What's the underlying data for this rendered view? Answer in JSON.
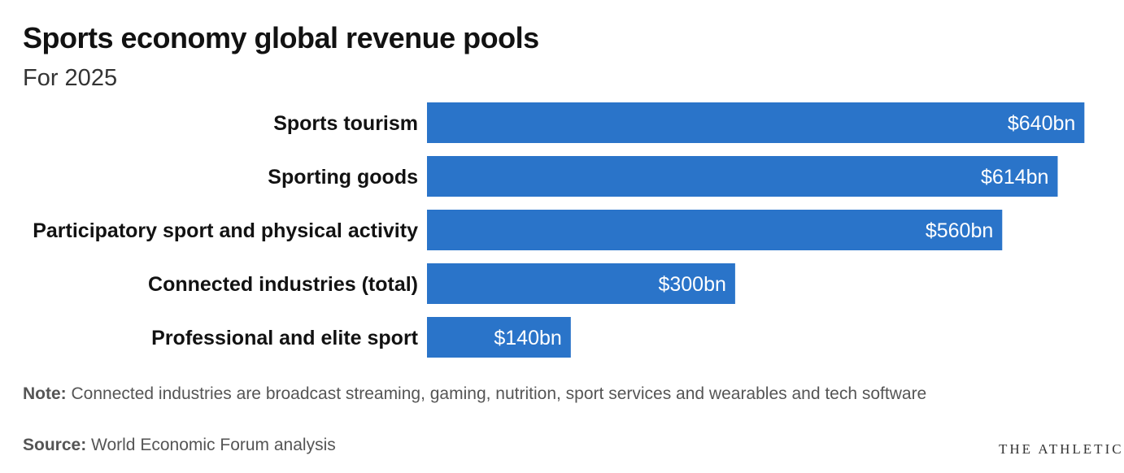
{
  "header": {
    "title": "Sports economy global revenue pools",
    "subtitle": "For 2025"
  },
  "chart_data": {
    "type": "bar",
    "orientation": "horizontal",
    "categories": [
      "Sports tourism",
      "Sporting goods",
      "Participatory sport and physical activity",
      "Connected industries (total)",
      "Professional and elite sport"
    ],
    "values": [
      640,
      614,
      560,
      300,
      140
    ],
    "value_labels": [
      "$640bn",
      "$614bn",
      "$560bn",
      "$300bn",
      "$140bn"
    ],
    "unit": "$bn",
    "bar_color": "#2a74c9",
    "label_color": "#ffffff",
    "xlim": [
      0,
      600
    ],
    "grid": false,
    "legend": "none"
  },
  "footer": {
    "note_label": "Note:",
    "note_text": "Connected industries are broadcast streaming, gaming, nutrition, sport services and wearables and tech software",
    "source_label": "Source:",
    "source_text": "World Economic Forum analysis",
    "brand": "THE ATHLETIC"
  }
}
